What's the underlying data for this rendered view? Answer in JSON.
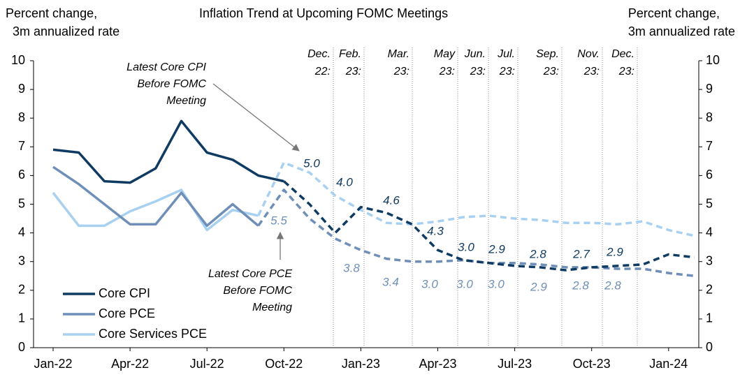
{
  "chart_data": {
    "type": "line",
    "title": "Inflation Trend at Upcoming FOMC Meetings",
    "y_label": [
      "Percent change,",
      "3m annualized rate"
    ],
    "y2_label": [
      "Percent change,",
      "3m annualized rate"
    ],
    "categories": [
      "Jan-22",
      null,
      null,
      "Apr-22",
      null,
      null,
      "Jul-22",
      null,
      null,
      "Oct-22",
      null,
      null,
      "Jan-23",
      null,
      null,
      "Apr-23",
      null,
      null,
      "Jul-23",
      null,
      null,
      "Oct-23",
      null,
      null,
      "Jan-24",
      null
    ],
    "ylim": [
      0,
      10
    ],
    "yticks": [
      0,
      1,
      2,
      3,
      4,
      5,
      6,
      7,
      8,
      9,
      10
    ],
    "y2lim": [
      0,
      10
    ],
    "y2ticks": [
      0,
      1,
      2,
      3,
      4,
      5,
      6,
      7,
      8,
      9,
      10
    ],
    "legend": "lower left",
    "series": [
      {
        "name": "Core CPI",
        "color": "#0f3b62",
        "dashed_from": 9,
        "values": [
          6.9,
          6.8,
          5.8,
          5.75,
          6.25,
          7.9,
          6.8,
          6.55,
          6.0,
          5.8,
          5.0,
          4.0,
          4.9,
          4.7,
          4.3,
          3.4,
          3.05,
          2.95,
          2.85,
          2.8,
          2.7,
          2.8,
          2.85,
          2.9,
          3.25,
          3.15
        ]
      },
      {
        "name": "Core PCE",
        "color": "#6f8fb8",
        "dashed_from": 8,
        "values": [
          6.3,
          5.7,
          5.0,
          4.3,
          4.3,
          5.4,
          4.25,
          5.0,
          4.25,
          5.5,
          4.5,
          3.8,
          3.4,
          3.1,
          3.0,
          3.0,
          3.05,
          2.95,
          2.95,
          2.9,
          2.8,
          2.8,
          2.75,
          2.75,
          2.6,
          2.5
        ]
      },
      {
        "name": "Core Services PCE",
        "color": "#a8d0f0",
        "dashed_from": 8,
        "values": [
          5.4,
          4.25,
          4.25,
          4.75,
          5.1,
          5.5,
          4.1,
          4.8,
          4.6,
          6.45,
          6.1,
          5.3,
          4.8,
          4.35,
          4.3,
          4.4,
          4.55,
          4.6,
          4.5,
          4.45,
          4.35,
          4.35,
          4.3,
          4.4,
          4.1,
          3.9
        ]
      }
    ],
    "meetings": [
      [
        "Dec.",
        "22:"
      ],
      [
        "Feb.",
        "23:"
      ],
      [
        "Mar.",
        "23:"
      ],
      [
        "May",
        "23:"
      ],
      [
        "Jun.",
        "23:"
      ],
      [
        "Jul.",
        "23:"
      ],
      [
        "Sep.",
        "23:"
      ],
      [
        "Nov.",
        "23:"
      ],
      [
        "Dec.",
        "23:"
      ]
    ],
    "meeting_cpi": {
      "values": [
        5.0,
        4.0,
        4.6,
        4.3,
        3.0,
        2.9,
        2.8,
        2.7,
        2.9
      ],
      "value_labels": [
        "5.0",
        "4.0",
        "4.6",
        "4.3",
        "3.0",
        "2.9",
        "2.8",
        "2.7",
        "2.9"
      ]
    },
    "meeting_pce": {
      "values": [
        5.5,
        3.8,
        3.4,
        3.0,
        3.0,
        3.0,
        2.9,
        2.8,
        2.8
      ],
      "value_labels": [
        "5.5",
        "3.8",
        "3.4",
        "3.0",
        "3.0",
        "3.0",
        "2.9",
        "2.8",
        "2.8"
      ]
    },
    "cpi_note": [
      "Latest Core CPI",
      "Before FOMC",
      "Meeting"
    ],
    "pce_note": [
      "Latest Core PCE",
      "Before FOMC",
      "Meeting"
    ]
  }
}
